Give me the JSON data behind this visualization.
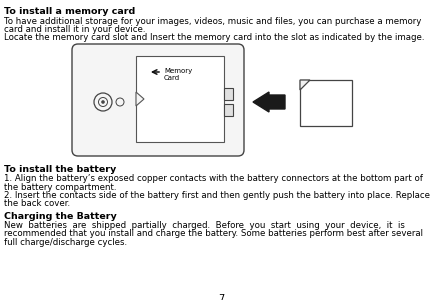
{
  "bg_color": "#ffffff",
  "title1": "To install a memory card",
  "para1_line1": "To have additional storage for your images, videos, music and files, you can purchase a memory",
  "para1_line2": "card and install it in your device.",
  "para1_line3": "Locate the memory card slot and Insert the memory card into the slot as indicated by the image.",
  "title2": "To install the battery",
  "para2_line1": "1. Align the battery’s exposed copper contacts with the battery connectors at the bottom part of",
  "para2_line2": "the battery compartment.",
  "para2_line3": "2. Insert the contacts side of the battery first and then gently push the battery into place. Replace",
  "para2_line4": "the back cover.",
  "title3": "Charging the Battery",
  "para3_line1": "New  batteries  are  shipped  partially  charged.  Before  you  start  using  your  device,  it  is",
  "para3_line2": "recommended that you install and charge the battery. Some batteries perform best after several",
  "para3_line3": "full charge/discharge cycles.",
  "page_number": "7",
  "memory_card_label": "Memory\nCard"
}
